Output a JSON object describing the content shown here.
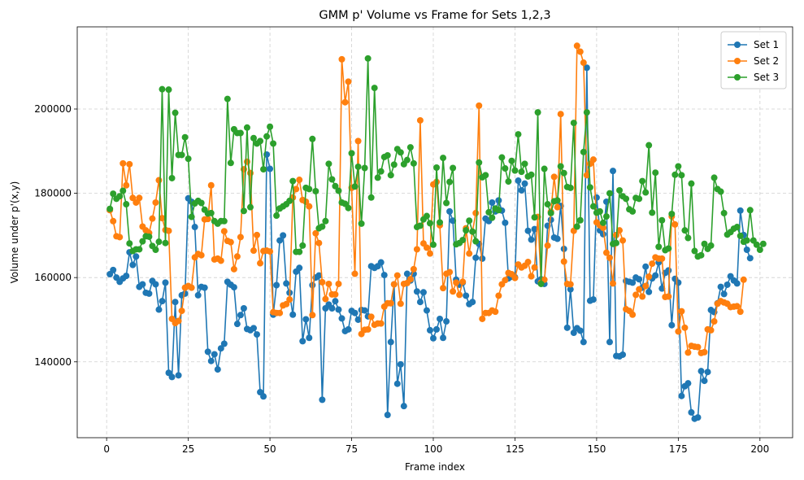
{
  "chart_data": {
    "type": "line",
    "title": "GMM p' Volume vs Frame for Sets 1,2,3",
    "xlabel": "Frame index",
    "ylabel": "Volume under p'(x,y)",
    "xlim": [
      -9,
      210
    ],
    "ylim": [
      122000,
      219500
    ],
    "x_ticks": [
      0,
      25,
      50,
      75,
      100,
      125,
      150,
      175,
      200
    ],
    "x_tick_labels": [
      "0",
      "25",
      "50",
      "75",
      "100",
      "125",
      "150",
      "175",
      "200"
    ],
    "y_ticks": [
      140000,
      160000,
      180000,
      200000
    ],
    "y_tick_labels": [
      "140000",
      "160000",
      "180000",
      "200000"
    ],
    "grid": true,
    "legend_position": "top-right",
    "markers": true,
    "series": [
      {
        "name": "Set 1",
        "color": "#1f77b4",
        "x_start": 1,
        "values": [
          160800,
          161800,
          160000,
          159000,
          159800,
          160400,
          166000,
          163000,
          165000,
          157800,
          158400,
          156400,
          156200,
          159200,
          158400,
          152400,
          154400,
          158800,
          137400,
          136400,
          154200,
          136800,
          155800,
          156200,
          178800,
          178000,
          172000,
          155800,
          157800,
          157600,
          142400,
          140200,
          141800,
          138200,
          143200,
          144300,
          159000,
          158300,
          157700,
          149000,
          151100,
          152700,
          147800,
          147500,
          148000,
          146500,
          132800,
          131800,
          189200,
          185800,
          151200,
          158200,
          168800,
          170000,
          158600,
          156400,
          151200,
          161400,
          162300,
          144900,
          150100,
          145700,
          158200,
          160000,
          160500,
          131000,
          152700,
          153600,
          152700,
          154400,
          152400,
          150300,
          147300,
          147700,
          152100,
          151600,
          150000,
          152300,
          152200,
          150800,
          162700,
          162300,
          162700,
          163600,
          160600,
          127400,
          144700,
          158400,
          134800,
          139400,
          129500,
          160900,
          159300,
          160900,
          156700,
          154200,
          156500,
          152200,
          147500,
          145600,
          147700,
          150200,
          145700,
          149600,
          175700,
          173500,
          159500,
          158300,
          158800,
          155700,
          153700,
          154200,
          164700,
          168000,
          164500,
          174000,
          173400,
          177800,
          175700,
          178300,
          175900,
          173000,
          159800,
          160200,
          160100,
          183000,
          180700,
          182300,
          171100,
          169000,
          171500,
          159100,
          159600,
          158500,
          172300,
          173700,
          169500,
          169200,
          177000,
          166800,
          148100,
          157200,
          146900,
          148000,
          147400,
          144700,
          209800,
          154500,
          154800,
          179000,
          171200,
          170300,
          178000,
          144700,
          185300,
          141400,
          141300,
          141700,
          159200,
          159000,
          158800,
          160000,
          159600,
          157600,
          162600,
          156600,
          159800,
          160500,
          163600,
          157400,
          161100,
          161700,
          148700,
          159700,
          158800,
          131900,
          134200,
          134900,
          128000,
          126500,
          126800,
          137800,
          135500,
          137600,
          152300,
          151800,
          153900,
          157800,
          156100,
          158300,
          160300,
          159300,
          158600,
          175900,
          170100,
          166600,
          164600
        ]
      },
      {
        "name": "Set 2",
        "color": "#ff7f0e",
        "x_start": 1,
        "values": [
          176000,
          173400,
          169800,
          169600,
          187100,
          181900,
          186900,
          178900,
          177800,
          178900,
          172100,
          171200,
          170600,
          174000,
          177800,
          183100,
          174100,
          171300,
          171100,
          150200,
          149200,
          149700,
          152100,
          157600,
          158000,
          157600,
          164800,
          165600,
          165300,
          173800,
          173900,
          181900,
          164300,
          164500,
          164000,
          171000,
          168700,
          168400,
          162000,
          165000,
          169600,
          185700,
          187500,
          184800,
          166400,
          170100,
          163400,
          166300,
          166400,
          166200,
          151800,
          151600,
          151600,
          153400,
          153700,
          154800,
          179000,
          181000,
          183200,
          178400,
          178000,
          176900,
          151100,
          170500,
          168200,
          158900,
          154900,
          158500,
          156000,
          156000,
          158500,
          211800,
          201600,
          206500,
          181300,
          160900,
          192400,
          146600,
          147600,
          147700,
          150700,
          148800,
          149100,
          149100,
          153100,
          153900,
          153900,
          158400,
          160500,
          153800,
          158500,
          158700,
          159600,
          162000,
          166700,
          197300,
          168100,
          167100,
          165700,
          182100,
          182700,
          172400,
          157500,
          160900,
          161300,
          156700,
          158800,
          155900,
          159000,
          171700,
          165700,
          170900,
          175300,
          200800,
          150200,
          151600,
          151600,
          152200,
          151900,
          155700,
          158400,
          159400,
          161100,
          160800,
          159900,
          163100,
          162400,
          162800,
          163700,
          160300,
          162400,
          174400,
          158800,
          159500,
          167600,
          175600,
          183900,
          176700,
          198800,
          163800,
          158500,
          158400,
          171100,
          215000,
          213600,
          211000,
          184300,
          187000,
          188000,
          173100,
          172400,
          171800,
          165900,
          164700,
          158600,
          170100,
          171200,
          168800,
          152500,
          152100,
          151200,
          155900,
          157200,
          155500,
          158000,
          160200,
          163300,
          164800,
          164500,
          164500,
          155400,
          155500,
          174500,
          172600,
          147200,
          152000,
          148100,
          142200,
          143800,
          143600,
          143500,
          142100,
          142300,
          147700,
          147500,
          149600,
          153800,
          154400,
          154100,
          153800,
          153000,
          153100,
          153200,
          151900,
          159500
        ]
      },
      {
        "name": "Set 3",
        "color": "#2ca02c",
        "x_start": 1,
        "values": [
          176300,
          179900,
          178700,
          179300,
          180600,
          177400,
          168100,
          166300,
          166700,
          166700,
          168600,
          169800,
          169700,
          167500,
          166600,
          168500,
          204700,
          168200,
          204600,
          183600,
          199100,
          189100,
          189100,
          193300,
          188200,
          174400,
          177600,
          178200,
          177700,
          176100,
          175200,
          175300,
          173400,
          172800,
          173400,
          173400,
          202400,
          187200,
          195200,
          194300,
          194300,
          175800,
          195600,
          176700,
          193100,
          191800,
          192400,
          185700,
          193500,
          195800,
          191800,
          174700,
          176400,
          176900,
          177400,
          178200,
          182900,
          166100,
          166100,
          167600,
          181300,
          181000,
          192900,
          180500,
          171700,
          172100,
          173400,
          187000,
          183300,
          181700,
          180600,
          177800,
          177500,
          176500,
          189500,
          181600,
          186300,
          172800,
          186000,
          212000,
          179000,
          205000,
          183700,
          185200,
          188600,
          189000,
          184300,
          186800,
          190500,
          189700,
          186900,
          187900,
          190900,
          187100,
          172000,
          172300,
          173800,
          174600,
          172900,
          167800,
          186100,
          173100,
          188400,
          177700,
          182700,
          186000,
          167900,
          168200,
          168900,
          171200,
          173500,
          170900,
          168600,
          187300,
          183800,
          184300,
          175500,
          174200,
          176400,
          176000,
          188500,
          185900,
          182800,
          187700,
          185400,
          194000,
          185100,
          187000,
          184000,
          184400,
          174300,
          199200,
          158500,
          185800,
          177400,
          175300,
          178100,
          178300,
          186400,
          184800,
          181500,
          181300,
          196700,
          172100,
          173600,
          189800,
          199200,
          181400,
          176900,
          175400,
          175700,
          173000,
          174500,
          180000,
          168000,
          168200,
          180700,
          179300,
          178700,
          176200,
          175700,
          178900,
          178700,
          182900,
          180200,
          191400,
          175400,
          184900,
          167300,
          173600,
          166500,
          166900,
          175100,
          184400,
          186400,
          184300,
          171200,
          169400,
          182300,
          166300,
          165000,
          165300,
          168000,
          166800,
          167600,
          183700,
          181000,
          180400,
          175300,
          170200,
          170800,
          171600,
          172000,
          169900,
          168500,
          168800,
          176000,
          168800,
          167800,
          166600,
          168000
        ]
      }
    ]
  }
}
